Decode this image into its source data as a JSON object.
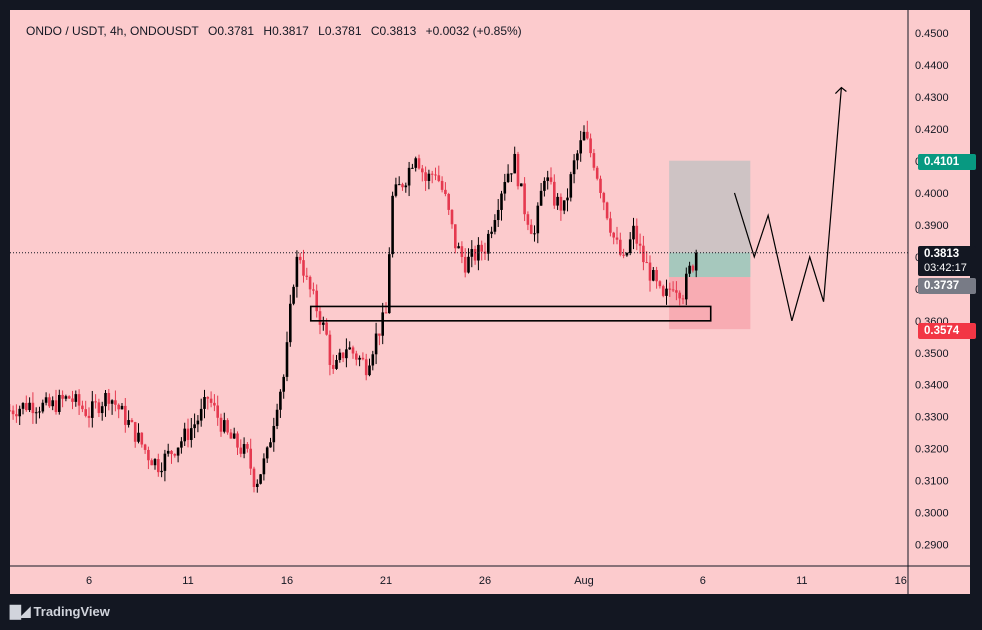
{
  "header": {
    "symbol": "ONDO / USDT, 4h, ONDOUSDT",
    "open": "O0.3781",
    "high": "H0.3817",
    "low": "L0.3781",
    "close": "C0.3813",
    "change": "+0.0032 (+0.85%)"
  },
  "price_tags": {
    "target": "0.4101",
    "current": "0.3813",
    "countdown": "03:42:17",
    "entry": "0.3737",
    "stop": "0.3574"
  },
  "brand": "TradingView",
  "colors": {
    "background": "#fccbcd",
    "up_candle": "#000000",
    "down_candle": "#e5394f",
    "target_tag": "#089981",
    "stop_tag": "#f23645",
    "entry_tag": "#787b86",
    "profit_zone": "#c6c2c2",
    "stop_zone": "#f7a9b0"
  },
  "chart_data": {
    "type": "candlestick",
    "symbol": "ONDO / USDT",
    "interval": "4h",
    "y_ticks": [
      "0.4500",
      "0.4400",
      "0.4300",
      "0.4200",
      "0.4100",
      "0.4000",
      "0.3900",
      "0.3800",
      "0.3700",
      "0.3600",
      "0.3500",
      "0.3400",
      "0.3300",
      "0.3200",
      "0.3100",
      "0.3000",
      "0.2900"
    ],
    "x_ticks": [
      {
        "label": "6",
        "day": 6
      },
      {
        "label": "11",
        "day": 11
      },
      {
        "label": "16",
        "day": 16
      },
      {
        "label": "21",
        "day": 21
      },
      {
        "label": "26",
        "day": 26
      },
      {
        "label": "Aug",
        "day": 31
      },
      {
        "label": "6",
        "day": 37
      },
      {
        "label": "11",
        "day": 42
      },
      {
        "label": "16",
        "day": 47
      }
    ],
    "ylim": [
      0.2865,
      0.4535
    ],
    "last_price": 0.3813,
    "price_path": [
      [
        2,
        0.332
      ],
      [
        3,
        0.334
      ],
      [
        4,
        0.333
      ],
      [
        5,
        0.336
      ],
      [
        6,
        0.331
      ],
      [
        7,
        0.337
      ],
      [
        8,
        0.328
      ],
      [
        9,
        0.318
      ],
      [
        9.5,
        0.315
      ],
      [
        10,
        0.318
      ],
      [
        11,
        0.325
      ],
      [
        11.7,
        0.331
      ],
      [
        12,
        0.336
      ],
      [
        13,
        0.324
      ],
      [
        14,
        0.318
      ],
      [
        14.4,
        0.309
      ],
      [
        15,
        0.318
      ],
      [
        15.5,
        0.335
      ],
      [
        15.9,
        0.344
      ],
      [
        16.3,
        0.372
      ],
      [
        16.6,
        0.382
      ],
      [
        17,
        0.372
      ],
      [
        17.5,
        0.364
      ],
      [
        18,
        0.355
      ],
      [
        18.3,
        0.343
      ],
      [
        19,
        0.352
      ],
      [
        20,
        0.346
      ],
      [
        20.5,
        0.355
      ],
      [
        21,
        0.362
      ],
      [
        21.3,
        0.398
      ],
      [
        22,
        0.405
      ],
      [
        22.5,
        0.413
      ],
      [
        23,
        0.404
      ],
      [
        23.5,
        0.407
      ],
      [
        24,
        0.398
      ],
      [
        24.5,
        0.384
      ],
      [
        25,
        0.378
      ],
      [
        26,
        0.383
      ],
      [
        26.5,
        0.394
      ],
      [
        27,
        0.405
      ],
      [
        27.5,
        0.41
      ],
      [
        28,
        0.395
      ],
      [
        28.5,
        0.387
      ],
      [
        29,
        0.406
      ],
      [
        29.5,
        0.398
      ],
      [
        30,
        0.395
      ],
      [
        30.5,
        0.409
      ],
      [
        31,
        0.418
      ],
      [
        31.5,
        0.41
      ],
      [
        32,
        0.398
      ],
      [
        32.5,
        0.386
      ],
      [
        33,
        0.378
      ],
      [
        33.5,
        0.388
      ],
      [
        34,
        0.379
      ],
      [
        34.5,
        0.373
      ],
      [
        35,
        0.366
      ],
      [
        35.5,
        0.372
      ],
      [
        36,
        0.369
      ],
      [
        36.4,
        0.377
      ],
      [
        36.8,
        0.381
      ]
    ],
    "annotations": {
      "demand_zone": {
        "from_day": 17.2,
        "to_day": 37.4,
        "low": 0.36,
        "high": 0.3645
      },
      "long_position": {
        "from_day": 35.3,
        "to_day": 39.4,
        "entry": 0.3737,
        "target": 0.4101,
        "stop": 0.3574
      },
      "projection_path": [
        [
          38.6,
          0.4
        ],
        [
          39.6,
          0.38
        ],
        [
          40.3,
          0.393
        ],
        [
          41.5,
          0.36
        ],
        [
          42.4,
          0.38
        ],
        [
          43.1,
          0.366
        ],
        [
          44.0,
          0.433
        ]
      ]
    }
  }
}
